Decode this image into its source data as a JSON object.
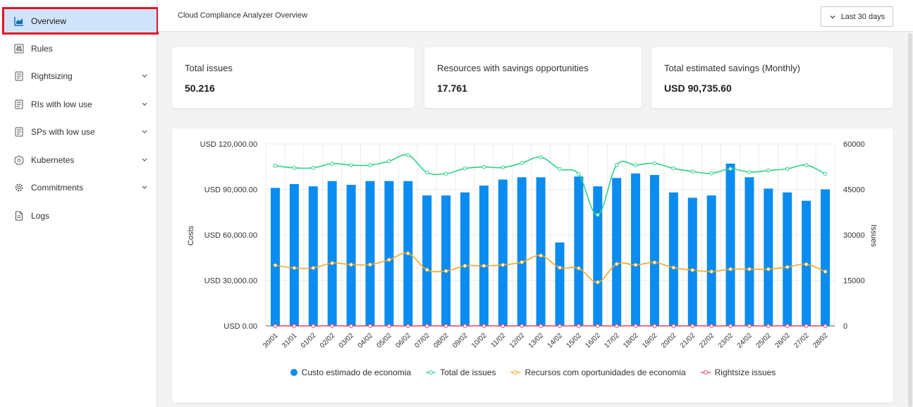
{
  "sidebar": {
    "items": [
      {
        "label": "Overview",
        "icon": "chart-icon"
      },
      {
        "label": "Rules",
        "icon": "rules-icon"
      },
      {
        "label": "Rightsizing",
        "icon": "document-icon"
      },
      {
        "label": "RIs with low use",
        "icon": "document-icon"
      },
      {
        "label": "SPs with low use",
        "icon": "document-icon"
      },
      {
        "label": "Kubernetes",
        "icon": "kubernetes-icon"
      },
      {
        "label": "Commitments",
        "icon": "gear-icon"
      },
      {
        "label": "Logs",
        "icon": "page-icon"
      }
    ]
  },
  "header": {
    "title": "Cloud Compliance Analyzer Overview",
    "date_range": "Last 30 days"
  },
  "kpis": [
    {
      "label": "Total issues",
      "value": "50.216"
    },
    {
      "label": "Resources with savings opportunities",
      "value": "17.761"
    },
    {
      "label": "Total estimated savings (Monthly)",
      "value": "USD 90,735.60"
    }
  ],
  "colors": {
    "accent": "#0f6cbd",
    "bar": "#0a8cf0",
    "total": "#2dd18a",
    "resources": "#f5a623",
    "rightsize": "#e8475f"
  },
  "chart_data": {
    "type": "bar",
    "categories": [
      "30/01",
      "31/01",
      "01/02",
      "02/02",
      "03/02",
      "04/02",
      "05/02",
      "06/02",
      "07/02",
      "08/02",
      "09/02",
      "10/02",
      "11/02",
      "12/02",
      "13/02",
      "14/02",
      "15/02",
      "16/02",
      "17/02",
      "18/02",
      "19/02",
      "20/02",
      "21/02",
      "22/02",
      "23/02",
      "24/02",
      "25/02",
      "26/02",
      "27/02",
      "28/02"
    ],
    "series": [
      {
        "name": "Custo estimado de economia",
        "type": "bar",
        "axis": "left",
        "values": [
          91000,
          93500,
          92000,
          95500,
          93000,
          95500,
          95500,
          95500,
          86000,
          86000,
          88000,
          92500,
          96500,
          98000,
          98000,
          55000,
          98500,
          92000,
          97500,
          100500,
          99500,
          88000,
          84500,
          86000,
          107000,
          98000,
          90500,
          88000,
          82500,
          90000
        ]
      },
      {
        "name": "Total de issues",
        "type": "line",
        "axis": "right",
        "values": [
          52800,
          52100,
          52100,
          53500,
          53000,
          53000,
          54300,
          56300,
          50600,
          50200,
          51900,
          52400,
          52200,
          53700,
          55600,
          51700,
          50000,
          36600,
          53000,
          53000,
          53600,
          51900,
          50900,
          50300,
          51800,
          50700,
          51200,
          51800,
          53000,
          50100
        ]
      },
      {
        "name": "Recursos com oportunidades de economia",
        "type": "line",
        "axis": "right",
        "values": [
          20000,
          19100,
          19100,
          20700,
          20200,
          20200,
          21800,
          23900,
          18500,
          18100,
          19800,
          19800,
          20100,
          21000,
          23200,
          19200,
          19000,
          14400,
          20400,
          20100,
          20900,
          19200,
          18400,
          17900,
          18700,
          18700,
          18700,
          19400,
          20300,
          17900
        ]
      },
      {
        "name": "Rightsize issues",
        "type": "line",
        "axis": "right",
        "values": [
          0,
          0,
          0,
          0,
          0,
          0,
          0,
          0,
          0,
          0,
          0,
          0,
          0,
          0,
          0,
          0,
          0,
          0,
          0,
          0,
          0,
          0,
          0,
          0,
          0,
          0,
          0,
          0,
          0,
          0
        ]
      }
    ],
    "ylabel_left": "Costs",
    "ylabel_right": "Issues",
    "ylim_left": [
      0,
      120000
    ],
    "ylim_right": [
      0,
      60000
    ],
    "yticks_left": [
      "USD 0.00",
      "USD 30,000.00",
      "USD 60,000.00",
      "USD 90,000.00",
      "USD 120,000.00"
    ],
    "yticks_right": [
      "0",
      "15000",
      "30000",
      "45000",
      "60000"
    ],
    "grid": true,
    "legend_position": "bottom"
  }
}
